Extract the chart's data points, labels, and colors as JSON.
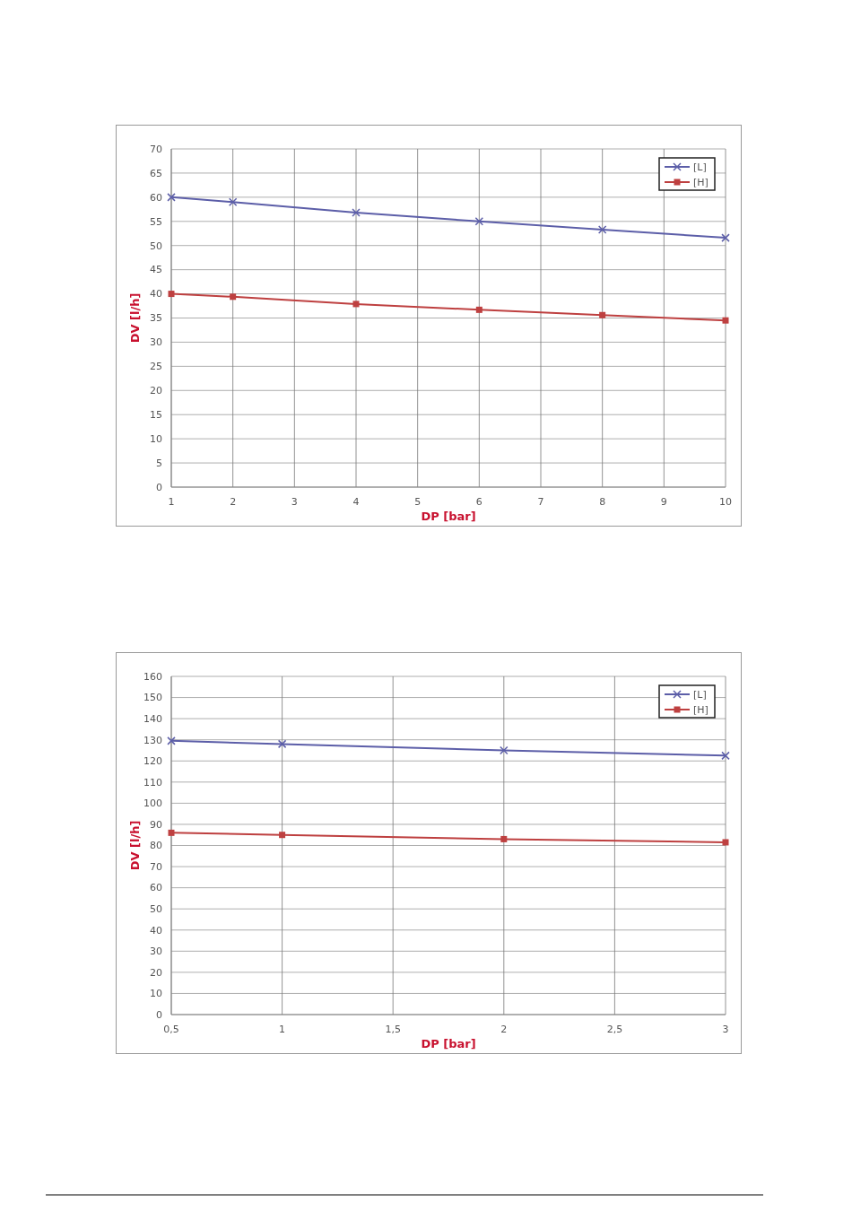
{
  "chart_data": [
    {
      "type": "line",
      "xlabel": "DP [bar]",
      "ylabel": "DV [l/h]",
      "x": [
        1,
        2,
        4,
        6,
        8,
        10
      ],
      "xlim": [
        1,
        10
      ],
      "xticks": [
        1,
        2,
        3,
        4,
        5,
        6,
        7,
        8,
        9,
        10
      ],
      "ylim": [
        0,
        70
      ],
      "yticks": [
        0,
        5,
        10,
        15,
        20,
        25,
        30,
        35,
        40,
        45,
        50,
        55,
        60,
        65,
        70
      ],
      "grid": true,
      "legend": "top right",
      "series": [
        {
          "name": "[L]",
          "color": "#5c5ea8",
          "marker": "cross",
          "values": [
            60,
            59,
            56.8,
            55,
            53.3,
            51.6
          ]
        },
        {
          "name": "[H]",
          "color": "#be4040",
          "marker": "square",
          "values": [
            40,
            39.4,
            37.9,
            36.7,
            35.6,
            34.5
          ]
        }
      ]
    },
    {
      "type": "line",
      "xlabel": "DP [bar]",
      "ylabel": "DV [l/h]",
      "x": [
        0.5,
        1,
        2,
        3
      ],
      "xlim": [
        0.5,
        3
      ],
      "xticks": [
        {
          "value": 0.5,
          "label": "0,5"
        },
        1,
        {
          "value": 1.5,
          "label": "1,5"
        },
        2,
        {
          "value": 2.5,
          "label": "2,5"
        },
        3
      ],
      "ylim": [
        0,
        160
      ],
      "yticks": [
        0,
        10,
        20,
        30,
        40,
        50,
        60,
        70,
        80,
        90,
        100,
        110,
        120,
        130,
        140,
        150,
        160
      ],
      "grid": true,
      "legend": "top right",
      "series": [
        {
          "name": "[L]",
          "color": "#5c5ea8",
          "marker": "cross",
          "values": [
            129.5,
            128,
            125,
            122.5
          ]
        },
        {
          "name": "[H]",
          "color": "#be4040",
          "marker": "square",
          "values": [
            86,
            85,
            83,
            81.5
          ]
        }
      ]
    }
  ]
}
